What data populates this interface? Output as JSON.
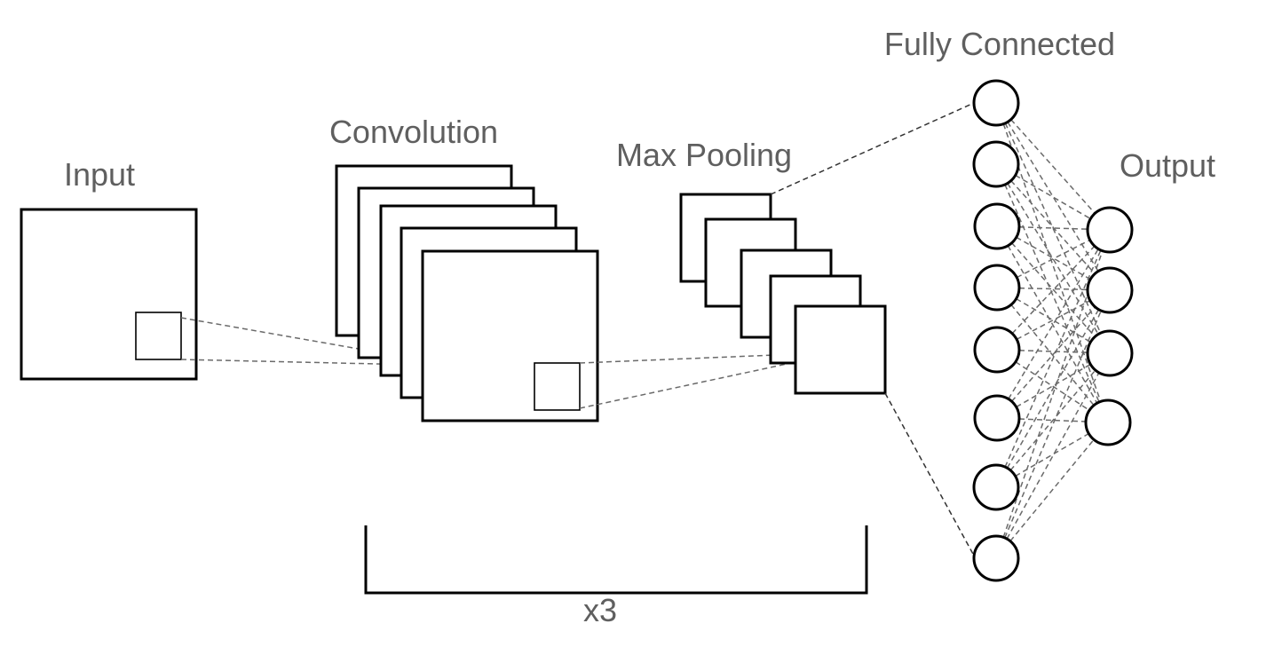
{
  "labels": {
    "input": "Input",
    "convolution": "Convolution",
    "max_pooling": "Max Pooling",
    "fully_connected": "Fully Connected",
    "output": "Output",
    "repeat": "x3"
  },
  "layers": {
    "convolution_maps": 5,
    "pooling_maps": 5,
    "fully_connected_neurons": 8,
    "output_neurons": 4
  }
}
